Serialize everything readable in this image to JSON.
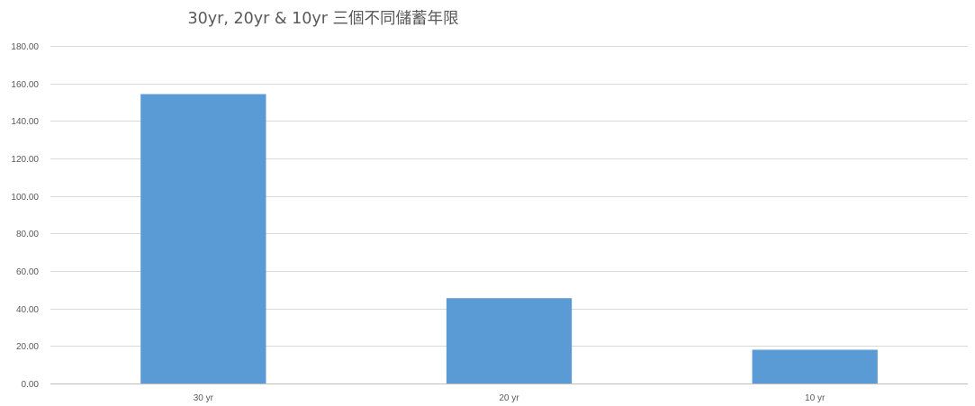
{
  "chart_data": {
    "type": "bar",
    "title": "30yr, 20yr & 10yr 三個不同儲蓄年限",
    "categories": [
      "30 yr",
      "20 yr",
      "10 yr"
    ],
    "values": [
      154.3,
      45.5,
      18.0
    ],
    "xlabel": "",
    "ylabel": "",
    "ylim": [
      0,
      180
    ],
    "y_ticks": [
      "0.00",
      "20.00",
      "40.00",
      "60.00",
      "80.00",
      "100.00",
      "120.00",
      "140.00",
      "160.00",
      "180.00"
    ],
    "grid": true,
    "legend": "none",
    "bar_color": "#5b9bd5"
  }
}
